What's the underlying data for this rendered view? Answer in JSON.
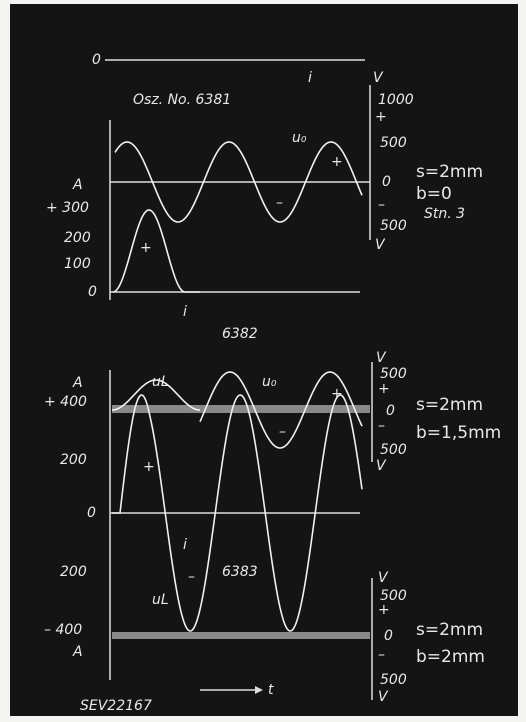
{
  "top_trace": {
    "zero": "0",
    "current": "i"
  },
  "panels": [
    {
      "title": "Osz. No. 6381",
      "left_axis": {
        "unit": "A",
        "ticks": [
          "+ 300",
          "200",
          "100",
          "0"
        ]
      },
      "right_axis": {
        "unit_top": "V",
        "ticks": [
          "1000",
          "+",
          "500",
          "0",
          "–",
          "500"
        ],
        "unit_bottom": "V"
      },
      "trace_labels": [
        "u₀",
        "+",
        "–",
        "+",
        "i"
      ],
      "params": [
        "s=2mm",
        "b=0"
      ],
      "note": "Stn. 3"
    },
    {
      "title": "6382",
      "left_axis": {
        "unit": "A",
        "ticks": [
          "+ 400",
          "200",
          "0",
          "200",
          "– 400"
        ],
        "unit_bottom": "A"
      },
      "right_axis": {
        "unit_top": "V",
        "ticks": [
          "500",
          "+",
          "0",
          "–",
          "500"
        ],
        "unit_bottom": "V"
      },
      "trace_labels": [
        "uL",
        "u₀",
        "+",
        "–",
        "+",
        "i",
        "–"
      ],
      "params": [
        "s=2mm",
        "b=1,5mm"
      ]
    },
    {
      "title": "6383",
      "right_axis": {
        "unit_top": "V",
        "ticks": [
          "500",
          "+",
          "0",
          "–",
          "500"
        ],
        "unit_bottom": "V"
      },
      "trace_labels": [
        "uL"
      ],
      "params": [
        "s=2mm",
        "b=2mm"
      ]
    }
  ],
  "time_label": "t",
  "reference": "SEV22167"
}
